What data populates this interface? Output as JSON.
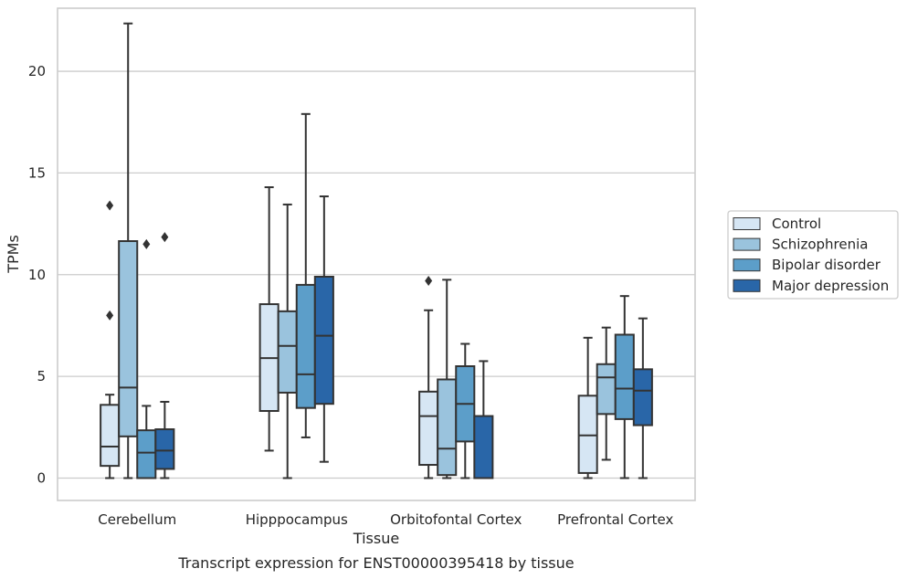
{
  "chart_data": {
    "type": "boxplot",
    "caption": "Transcript expression for ENST00000395418 by tissue",
    "xlabel": "Tissue",
    "ylabel": "TPMs",
    "ylim": [
      -1.1,
      23.1
    ],
    "yticks": [
      0,
      5,
      10,
      15,
      20
    ],
    "grid": true,
    "legend_position": "right-outside",
    "categories": [
      "Cerebellum",
      "Hipppocampus",
      "Orbitofontal Cortex",
      "Prefrontal Cortex"
    ],
    "series": [
      {
        "name": "Control",
        "color": "#d6e6f4",
        "boxes": [
          {
            "min": 0,
            "q1": 0.6,
            "median": 1.55,
            "q3": 3.6,
            "max": 4.1,
            "fliers": [
              8.0,
              13.4
            ]
          },
          {
            "min": 1.35,
            "q1": 3.3,
            "median": 5.9,
            "q3": 8.55,
            "max": 14.3,
            "fliers": []
          },
          {
            "min": 0,
            "q1": 0.65,
            "median": 3.05,
            "q3": 4.25,
            "max": 8.25,
            "fliers": [
              9.7
            ]
          },
          {
            "min": 0,
            "q1": 0.25,
            "median": 2.1,
            "q3": 4.05,
            "max": 6.9,
            "fliers": []
          }
        ]
      },
      {
        "name": "Schizophrenia",
        "color": "#9ac3dd",
        "boxes": [
          {
            "min": 0,
            "q1": 2.05,
            "median": 4.45,
            "q3": 11.65,
            "max": 22.35,
            "fliers": []
          },
          {
            "min": 0,
            "q1": 4.2,
            "median": 6.5,
            "q3": 8.2,
            "max": 13.45,
            "fliers": []
          },
          {
            "min": 0,
            "q1": 0.15,
            "median": 1.45,
            "q3": 4.85,
            "max": 9.75,
            "fliers": []
          },
          {
            "min": 0.9,
            "q1": 3.15,
            "median": 4.95,
            "q3": 5.6,
            "max": 7.4,
            "fliers": []
          }
        ]
      },
      {
        "name": "Bipolar disorder",
        "color": "#5c9ec9",
        "boxes": [
          {
            "min": 0,
            "q1": 0,
            "median": 1.25,
            "q3": 2.35,
            "max": 3.55,
            "fliers": [
              11.5
            ]
          },
          {
            "min": 2.0,
            "q1": 3.45,
            "median": 5.1,
            "q3": 9.5,
            "max": 17.9,
            "fliers": []
          },
          {
            "min": 0,
            "q1": 1.8,
            "median": 3.65,
            "q3": 5.5,
            "max": 6.6,
            "fliers": []
          },
          {
            "min": 0,
            "q1": 2.9,
            "median": 4.4,
            "q3": 7.05,
            "max": 8.95,
            "fliers": []
          }
        ]
      },
      {
        "name": "Major depression",
        "color": "#2966a8",
        "boxes": [
          {
            "min": 0,
            "q1": 0.45,
            "median": 1.35,
            "q3": 2.4,
            "max": 3.75,
            "fliers": [
              11.85
            ]
          },
          {
            "min": 0.8,
            "q1": 3.65,
            "median": 7.0,
            "q3": 9.9,
            "max": 13.85,
            "fliers": []
          },
          {
            "min": 0,
            "q1": 0,
            "median": 0,
            "q3": 3.05,
            "max": 5.75,
            "fliers": []
          },
          {
            "min": 0,
            "q1": 2.6,
            "median": 4.3,
            "q3": 5.35,
            "max": 7.85,
            "fliers": []
          }
        ]
      }
    ]
  }
}
